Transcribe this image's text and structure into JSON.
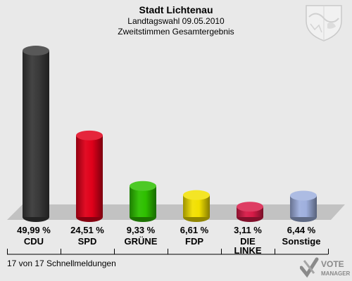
{
  "header": {
    "title": "Stadt Lichtenau",
    "subtitle1": "Landtagswahl 09.05.2010",
    "subtitle2": "Zweitstimmen Gesamtergebnis"
  },
  "chart_data": {
    "type": "bar",
    "categories": [
      "CDU",
      "SPD",
      "GRÜNE",
      "FDP",
      "DIE LINKE",
      "Sonstige"
    ],
    "values": [
      49.99,
      24.51,
      9.33,
      6.61,
      3.11,
      6.44
    ],
    "value_labels": [
      "49,99 %",
      "24,51 %",
      "9,33 %",
      "6,61 %",
      "3,11 %",
      "6,44 %"
    ],
    "colors": [
      "#3a3a3a",
      "#e0001a",
      "#2ec000",
      "#f2e000",
      "#d81b48",
      "#9fb0de"
    ],
    "ylim": [
      0,
      50
    ]
  },
  "footer": {
    "status": "17 von 17 Schnellmeldungen"
  },
  "logo": {
    "line1": "VOTE",
    "line2": "MANAGER"
  },
  "icons": {
    "crest": "coat-of-arms-icon",
    "logo_mark": "vote-check-icon"
  }
}
